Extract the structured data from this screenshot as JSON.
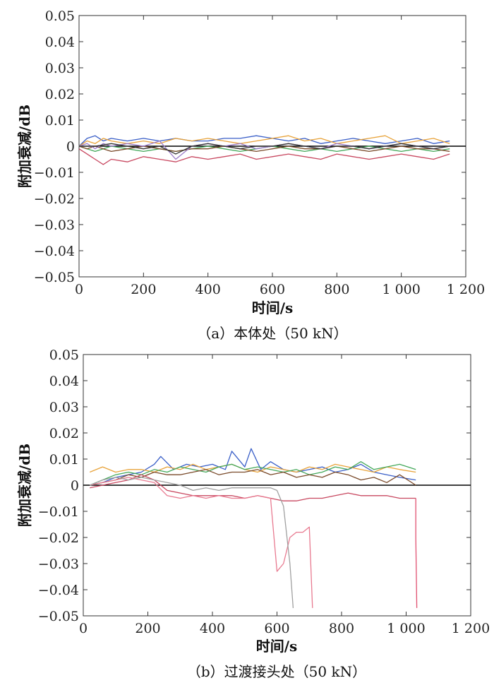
{
  "chart_data": [
    {
      "type": "line",
      "caption": "（a）本体处（50 kN）",
      "xlabel": "时间/s",
      "ylabel": "附加衰减/dB",
      "xlim": [
        0,
        1200
      ],
      "ylim": [
        -0.05,
        0.05
      ],
      "xticks": [
        0,
        200,
        400,
        600,
        800,
        1000,
        1200
      ],
      "xtick_labels": [
        "0",
        "200",
        "400",
        "600",
        "800",
        "1 000",
        "1 200"
      ],
      "yticks": [
        0.05,
        0.04,
        0.03,
        0.02,
        0.01,
        0,
        -0.01,
        -0.02,
        -0.03,
        -0.04,
        -0.05
      ],
      "ytick_labels": [
        "0.05",
        "0.04",
        "0.03",
        "0.02",
        "0.01",
        "0",
        "−0.01",
        "−0.02",
        "−0.03",
        "−0.04",
        "−0.05"
      ],
      "series": [
        {
          "color": "#3a5fc8",
          "x": [
            0,
            25,
            50,
            75,
            100,
            150,
            200,
            250,
            300,
            350,
            400,
            450,
            500,
            550,
            600,
            650,
            700,
            750,
            800,
            850,
            900,
            950,
            1000,
            1050,
            1100,
            1150
          ],
          "y": [
            0,
            0.003,
            0.004,
            0.002,
            0.003,
            0.002,
            0.003,
            0.002,
            0.003,
            0.002,
            0.002,
            0.003,
            0.003,
            0.004,
            0.003,
            0.002,
            0.003,
            0.001,
            0.002,
            0.003,
            0.002,
            0.001,
            0.002,
            0.003,
            0.001,
            0.002
          ]
        },
        {
          "color": "#e8a33a",
          "x": [
            0,
            25,
            50,
            75,
            100,
            150,
            200,
            250,
            300,
            350,
            400,
            450,
            500,
            550,
            600,
            650,
            700,
            750,
            800,
            850,
            900,
            950,
            1000,
            1050,
            1100,
            1150
          ],
          "y": [
            0,
            0.002,
            0.001,
            0.003,
            0.002,
            0.001,
            0.002,
            0.001,
            0.003,
            0.002,
            0.003,
            0.002,
            0.001,
            0.002,
            0.003,
            0.004,
            0.002,
            0.003,
            0.001,
            0.002,
            0.003,
            0.004,
            0.001,
            0.002,
            0.003,
            0.001
          ]
        },
        {
          "color": "#44a85a",
          "x": [
            0,
            25,
            50,
            75,
            100,
            150,
            200,
            250,
            300,
            350,
            400,
            450,
            500,
            550,
            600,
            650,
            700,
            750,
            800,
            850,
            900,
            950,
            1000,
            1050,
            1100,
            1150
          ],
          "y": [
            0,
            -0.001,
            -0.002,
            -0.001,
            0,
            -0.001,
            -0.002,
            -0.001,
            -0.002,
            -0.001,
            0,
            -0.001,
            -0.002,
            -0.001,
            0,
            -0.001,
            -0.002,
            -0.001,
            -0.002,
            -0.001,
            0,
            -0.001,
            -0.002,
            -0.001,
            -0.002,
            -0.001
          ]
        },
        {
          "color": "#7a4a2a",
          "x": [
            0,
            25,
            50,
            75,
            100,
            150,
            200,
            250,
            300,
            350,
            400,
            450,
            500,
            550,
            600,
            650,
            700,
            750,
            800,
            850,
            900,
            950,
            1000,
            1050,
            1100,
            1150
          ],
          "y": [
            0,
            -0.001,
            0,
            -0.001,
            -0.002,
            -0.001,
            0,
            -0.001,
            -0.002,
            -0.001,
            -0.001,
            0,
            -0.001,
            -0.002,
            -0.001,
            0,
            -0.001,
            -0.001,
            0,
            -0.001,
            -0.002,
            -0.001,
            0,
            -0.001,
            -0.001,
            -0.002
          ]
        },
        {
          "color": "#c84860",
          "x": [
            0,
            25,
            50,
            75,
            100,
            150,
            200,
            250,
            300,
            350,
            400,
            450,
            500,
            550,
            600,
            650,
            700,
            750,
            800,
            850,
            900,
            950,
            1000,
            1050,
            1100,
            1150
          ],
          "y": [
            -0.001,
            -0.003,
            -0.005,
            -0.007,
            -0.005,
            -0.006,
            -0.004,
            -0.005,
            -0.006,
            -0.004,
            -0.005,
            -0.004,
            -0.003,
            -0.005,
            -0.004,
            -0.003,
            -0.004,
            -0.005,
            -0.003,
            -0.004,
            -0.005,
            -0.004,
            -0.003,
            -0.004,
            -0.005,
            -0.003
          ]
        },
        {
          "color": "#9a7ac8",
          "x": [
            0,
            25,
            50,
            75,
            100,
            150,
            200,
            250,
            300,
            350,
            400,
            450,
            500,
            550,
            600,
            650,
            700,
            750,
            800,
            850,
            900,
            950,
            1000,
            1050,
            1100,
            1150
          ],
          "y": [
            0,
            0.001,
            -0.001,
            0.001,
            0,
            0.001,
            0,
            0.002,
            -0.005,
            0,
            0.001,
            0,
            0.001,
            -0.001,
            0,
            0.001,
            0,
            -0.001,
            0.001,
            0,
            -0.001,
            0,
            0.001,
            0,
            -0.001,
            0
          ]
        },
        {
          "color": "#333333",
          "x": [
            0,
            50,
            100,
            150,
            200,
            250,
            300,
            350,
            400,
            450,
            500,
            550,
            600,
            650,
            700,
            750,
            800,
            850,
            900,
            950,
            1000,
            1050,
            1100,
            1150
          ],
          "y": [
            0,
            0,
            0.001,
            0,
            -0.001,
            0,
            -0.003,
            0,
            0.001,
            0,
            -0.001,
            0,
            0,
            0.001,
            0,
            -0.001,
            0,
            0,
            -0.001,
            0,
            0.001,
            0,
            -0.001,
            0
          ]
        }
      ]
    },
    {
      "type": "line",
      "caption": "（b）过渡接头处（50 kN）",
      "xlabel": "时间/s",
      "ylabel": "附加衰减/dB",
      "xlim": [
        0,
        1200
      ],
      "ylim": [
        -0.05,
        0.05
      ],
      "xticks": [
        0,
        200,
        400,
        600,
        800,
        1000,
        1200
      ],
      "xtick_labels": [
        "0",
        "200",
        "400",
        "600",
        "800",
        "1 000",
        "1 200"
      ],
      "yticks": [
        0.05,
        0.04,
        0.03,
        0.02,
        0.01,
        0,
        -0.01,
        -0.02,
        -0.03,
        -0.04,
        -0.05
      ],
      "ytick_labels": [
        "0.05",
        "0.04",
        "0.03",
        "0.02",
        "0.01",
        "0",
        "−0.01",
        "−0.02",
        "−0.03",
        "−0.04",
        "−0.05"
      ],
      "series": [
        {
          "color": "#3a5fc8",
          "x": [
            20,
            60,
            100,
            140,
            180,
            220,
            240,
            280,
            320,
            360,
            400,
            440,
            460,
            500,
            520,
            550,
            580,
            620,
            660,
            700,
            740,
            780,
            820,
            860,
            900,
            940,
            980,
            1030
          ],
          "y": [
            0,
            0.001,
            0.003,
            0.004,
            0.005,
            0.008,
            0.011,
            0.006,
            0.008,
            0.007,
            0.008,
            0.006,
            0.013,
            0.007,
            0.014,
            0.006,
            0.009,
            0.006,
            0.005,
            0.006,
            0.007,
            0.005,
            0.006,
            0.008,
            0.005,
            0.004,
            0.003,
            0.002
          ]
        },
        {
          "color": "#e8a33a",
          "x": [
            20,
            60,
            100,
            140,
            180,
            220,
            260,
            300,
            340,
            380,
            420,
            460,
            500,
            540,
            580,
            620,
            660,
            700,
            740,
            780,
            820,
            860,
            900,
            940,
            980,
            1030
          ],
          "y": [
            0.005,
            0.007,
            0.005,
            0.006,
            0.006,
            0.005,
            0.007,
            0.006,
            0.008,
            0.006,
            0.007,
            0.008,
            0.006,
            0.005,
            0.007,
            0.006,
            0.005,
            0.007,
            0.006,
            0.008,
            0.007,
            0.006,
            0.005,
            0.007,
            0.006,
            0.005
          ]
        },
        {
          "color": "#44a85a",
          "x": [
            20,
            60,
            100,
            140,
            180,
            220,
            260,
            300,
            340,
            380,
            420,
            460,
            500,
            540,
            580,
            620,
            660,
            700,
            740,
            780,
            820,
            860,
            900,
            940,
            980,
            1030
          ],
          "y": [
            0,
            0.002,
            0.004,
            0.005,
            0.004,
            0.006,
            0.005,
            0.007,
            0.006,
            0.005,
            0.007,
            0.008,
            0.006,
            0.007,
            0.006,
            0.005,
            0.006,
            0.004,
            0.005,
            0.007,
            0.006,
            0.009,
            0.006,
            0.007,
            0.008,
            0.006
          ]
        },
        {
          "color": "#7a4a2a",
          "x": [
            20,
            60,
            100,
            140,
            180,
            220,
            260,
            300,
            340,
            380,
            420,
            460,
            500,
            540,
            580,
            620,
            660,
            700,
            740,
            780,
            820,
            860,
            900,
            940,
            980,
            1030
          ],
          "y": [
            0,
            0.001,
            0.002,
            0.004,
            0.003,
            0.005,
            0.004,
            0.004,
            0.005,
            0.006,
            0.004,
            0.005,
            0.005,
            0.006,
            0.004,
            0.005,
            0.003,
            0.004,
            0.003,
            0.005,
            0.004,
            0.002,
            0.003,
            0.001,
            0.004,
            0
          ]
        },
        {
          "color": "#c84860",
          "x": [
            20,
            60,
            100,
            140,
            180,
            220,
            260,
            300,
            340,
            380,
            420,
            460,
            500,
            540,
            580,
            620,
            660,
            700,
            740,
            780,
            820,
            860,
            900,
            940,
            980,
            1030
          ],
          "y": [
            -0.001,
            0,
            0.001,
            0.002,
            0.004,
            0.002,
            -0.002,
            -0.003,
            -0.004,
            -0.004,
            -0.004,
            -0.004,
            -0.005,
            -0.004,
            -0.005,
            -0.006,
            -0.006,
            -0.005,
            -0.005,
            -0.004,
            -0.003,
            -0.004,
            -0.004,
            -0.004,
            -0.005,
            -0.005
          ]
        },
        {
          "color": "#e87a90",
          "x": [
            20,
            60,
            100,
            140,
            180,
            220,
            260,
            300,
            340,
            380,
            420,
            460,
            500,
            540,
            580,
            600,
            620,
            640,
            660,
            680,
            700,
            710
          ],
          "y": [
            0,
            0.001,
            0.002,
            0.003,
            0.002,
            0.001,
            -0.004,
            -0.005,
            -0.004,
            -0.005,
            -0.004,
            -0.005,
            -0.005,
            -0.004,
            -0.005,
            -0.033,
            -0.03,
            -0.02,
            -0.018,
            -0.018,
            -0.016,
            -0.047
          ]
        },
        {
          "color": "#a0a0a0",
          "x": [
            20,
            60,
            100,
            140,
            180,
            220,
            260,
            300,
            340,
            380,
            420,
            460,
            500,
            540,
            580,
            600,
            620,
            640,
            650
          ],
          "y": [
            0,
            0.002,
            0.003,
            0.002,
            0.003,
            0.002,
            0.001,
            0,
            -0.002,
            -0.001,
            -0.002,
            -0.001,
            -0.001,
            -0.001,
            -0.001,
            -0.002,
            -0.008,
            -0.03,
            -0.047
          ]
        },
        {
          "color": "#e05070",
          "x": [
            1030,
            1030,
            1033
          ],
          "y": [
            -0.005,
            -0.02,
            -0.047
          ]
        }
      ]
    }
  ]
}
